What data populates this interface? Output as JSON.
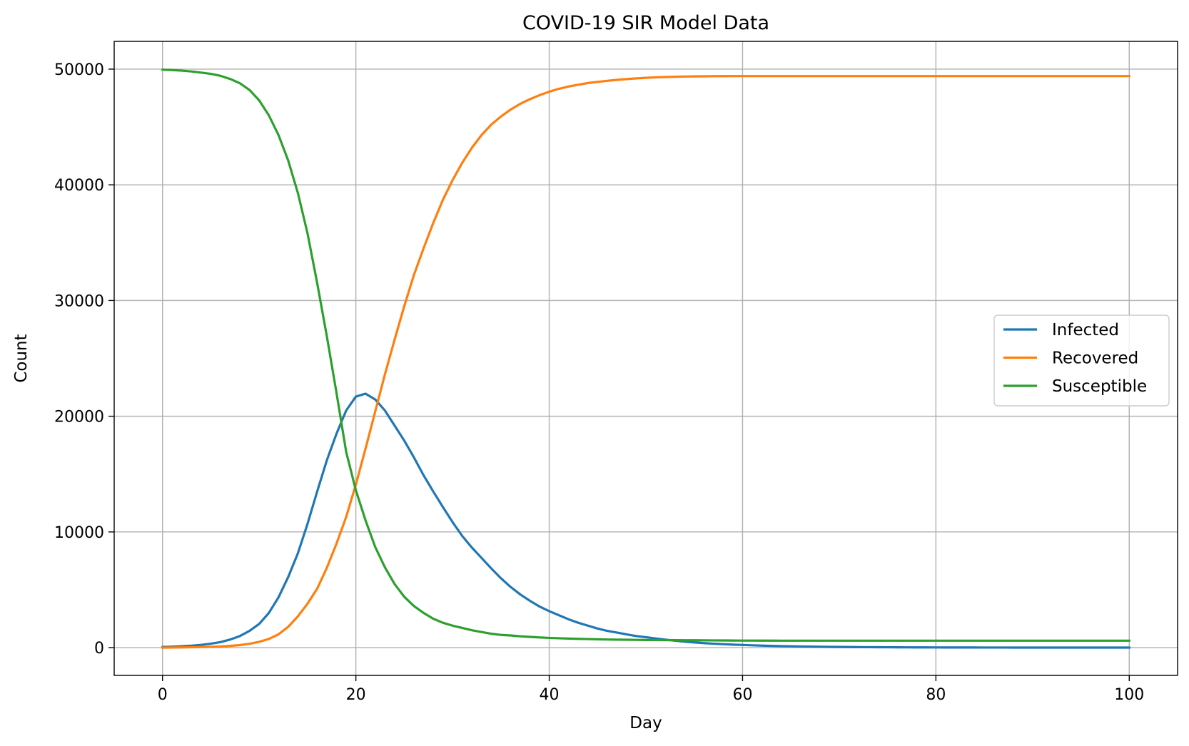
{
  "chart_data": {
    "type": "line",
    "title": "COVID-19 SIR Model Data",
    "xlabel": "Day",
    "ylabel": "Count",
    "xlim": [
      -5,
      105
    ],
    "ylim": [
      -2400,
      52400
    ],
    "xticks": [
      0,
      20,
      40,
      60,
      80,
      100
    ],
    "yticks": [
      0,
      10000,
      20000,
      30000,
      40000,
      50000
    ],
    "grid": true,
    "legend_position": "center-right",
    "x": [
      0,
      1,
      2,
      3,
      4,
      5,
      6,
      7,
      8,
      9,
      10,
      11,
      12,
      13,
      14,
      15,
      16,
      17,
      18,
      19,
      20,
      21,
      22,
      23,
      24,
      25,
      26,
      27,
      28,
      29,
      30,
      31,
      32,
      33,
      34,
      35,
      36,
      37,
      38,
      39,
      40,
      41,
      42,
      43,
      44,
      45,
      46,
      47,
      48,
      49,
      50,
      51,
      52,
      53,
      54,
      55,
      56,
      57,
      58,
      59,
      60,
      61,
      62,
      63,
      64,
      65,
      66,
      67,
      68,
      69,
      70,
      71,
      72,
      73,
      74,
      75,
      76,
      77,
      78,
      79,
      80,
      81,
      82,
      83,
      84,
      85,
      86,
      87,
      88,
      89,
      90,
      91,
      92,
      93,
      94,
      95,
      96,
      97,
      98,
      99,
      100
    ],
    "series": [
      {
        "name": "Infected",
        "color": "#1f77b4",
        "values": [
          50,
          80,
          120,
          170,
          240,
          340,
          480,
          700,
          1000,
          1450,
          2050,
          3000,
          4350,
          6100,
          8150,
          10700,
          13500,
          16200,
          18500,
          20500,
          21700,
          21950,
          21450,
          20500,
          19200,
          17900,
          16450,
          14900,
          13500,
          12150,
          10850,
          9650,
          8650,
          7750,
          6850,
          6000,
          5250,
          4600,
          4050,
          3550,
          3150,
          2800,
          2450,
          2150,
          1900,
          1650,
          1450,
          1300,
          1150,
          1000,
          900,
          790,
          690,
          600,
          520,
          450,
          390,
          340,
          300,
          260,
          230,
          200,
          175,
          150,
          130,
          115,
          100,
          88,
          77,
          67,
          58,
          51,
          45,
          39,
          34,
          30,
          26,
          23,
          20,
          18,
          16,
          14,
          12,
          11,
          10,
          9,
          8,
          7,
          6,
          5,
          5,
          4,
          4,
          3,
          3,
          3,
          2,
          2,
          2,
          2,
          2
        ]
      },
      {
        "name": "Recovered",
        "color": "#ff7f0e",
        "values": [
          0,
          10,
          20,
          30,
          50,
          70,
          100,
          150,
          220,
          330,
          500,
          750,
          1150,
          1800,
          2700,
          3800,
          5100,
          6900,
          9000,
          11300,
          14100,
          17200,
          20400,
          23600,
          26600,
          29500,
          32200,
          34500,
          36700,
          38700,
          40400,
          41900,
          43200,
          44300,
          45200,
          45900,
          46500,
          47000,
          47400,
          47750,
          48050,
          48300,
          48500,
          48650,
          48800,
          48900,
          48990,
          49070,
          49140,
          49200,
          49250,
          49290,
          49320,
          49340,
          49360,
          49370,
          49380,
          49390,
          49395,
          49400,
          49400,
          49400,
          49400,
          49400,
          49400,
          49400,
          49400,
          49400,
          49400,
          49400,
          49400,
          49400,
          49400,
          49400,
          49400,
          49400,
          49400,
          49400,
          49400,
          49400,
          49400,
          49400,
          49400,
          49400,
          49400,
          49400,
          49400,
          49400,
          49400,
          49400,
          49400,
          49400,
          49400,
          49400,
          49400,
          49400,
          49400,
          49400,
          49400,
          49400,
          49400
        ]
      },
      {
        "name": "Susceptible",
        "color": "#2ca02c",
        "values": [
          49950,
          49920,
          49870,
          49800,
          49700,
          49590,
          49420,
          49150,
          48780,
          48200,
          47300,
          46000,
          44300,
          42100,
          39300,
          35800,
          31500,
          26900,
          22000,
          16900,
          13600,
          11000,
          8700,
          6950,
          5500,
          4400,
          3600,
          3000,
          2500,
          2150,
          1900,
          1700,
          1500,
          1350,
          1200,
          1100,
          1050,
          980,
          930,
          880,
          840,
          810,
          780,
          760,
          740,
          720,
          700,
          690,
          680,
          670,
          660,
          655,
          650,
          645,
          640,
          635,
          630,
          625,
          620,
          615,
          610,
          608,
          606,
          604,
          602,
          600,
          600,
          600,
          600,
          600,
          600,
          600,
          600,
          600,
          600,
          600,
          600,
          600,
          600,
          600,
          600,
          600,
          600,
          600,
          600,
          600,
          600,
          600,
          600,
          600,
          600,
          600,
          600,
          600,
          600,
          600,
          600,
          600,
          600,
          600,
          600
        ]
      }
    ]
  }
}
